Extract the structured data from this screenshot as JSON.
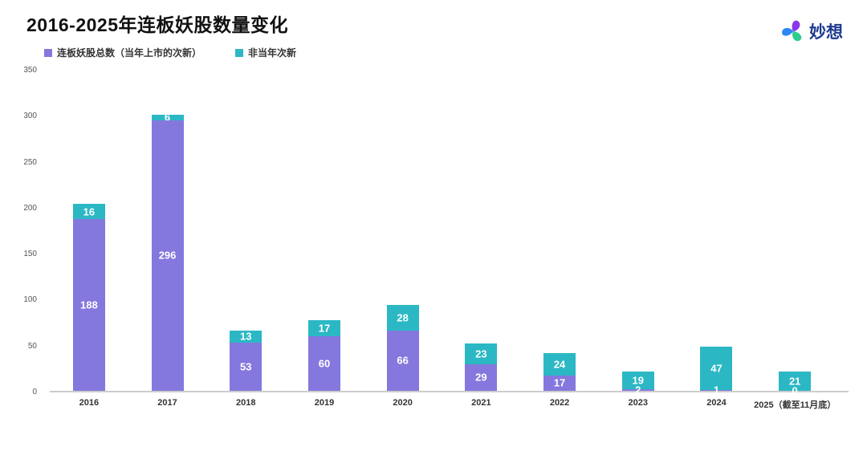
{
  "header": {
    "title": "2016-2025年连板妖股数量变化",
    "logo_text": "妙想"
  },
  "legend": [
    {
      "label": "连板妖股总数（当年上市的次新）",
      "color": "#8478de"
    },
    {
      "label": "非当年次新",
      "color": "#2bb8c4"
    }
  ],
  "colors": {
    "primary_purple": "#8478de",
    "secondary_teal": "#2bb8c4",
    "axis_line": "#cccccc",
    "logo_navy": "#1e3a8f"
  },
  "chart_data": {
    "type": "bar",
    "stacked": true,
    "title": "2016-2025年连板妖股数量变化",
    "categories": [
      "2016",
      "2017",
      "2018",
      "2019",
      "2020",
      "2021",
      "2022",
      "2023",
      "2024",
      "2025（截至11月底）"
    ],
    "series": [
      {
        "name": "连板妖股总数（当年上市的次新）",
        "color": "#8478de",
        "values": [
          188,
          296,
          53,
          60,
          66,
          29,
          17,
          2,
          1,
          0
        ]
      },
      {
        "name": "非当年次新",
        "color": "#2bb8c4",
        "values": [
          16,
          6,
          13,
          17,
          28,
          23,
          24,
          19,
          47,
          21
        ]
      }
    ],
    "totals": [
      204,
      302,
      66,
      77,
      94,
      52,
      41,
      21,
      48,
      21
    ],
    "xlabel": "",
    "ylabel": "",
    "ylim": [
      0,
      350
    ],
    "yticks": [
      0,
      50,
      100,
      150,
      200,
      250,
      300,
      350
    ],
    "grid": false,
    "legend_position": "top-left"
  }
}
